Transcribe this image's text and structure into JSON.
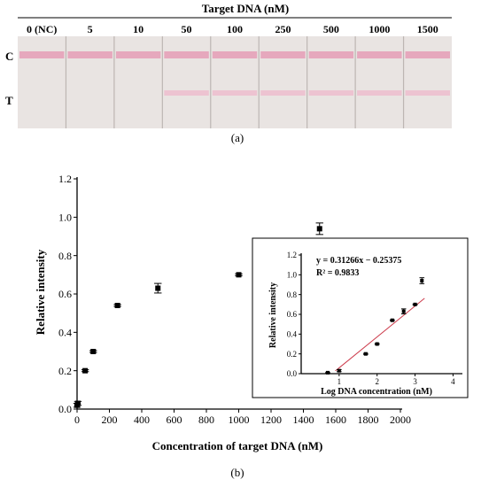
{
  "strips": {
    "header": "Target DNA (nM)",
    "concentrations": [
      "0 (NC)",
      "5",
      "10",
      "50",
      "100",
      "250",
      "500",
      "1000",
      "1500"
    ],
    "test_line_visible": [
      false,
      false,
      false,
      true,
      true,
      true,
      true,
      true,
      true
    ],
    "row_labels": {
      "control": "C",
      "test": "T"
    },
    "panel_label": "(a)",
    "colors": {
      "strip": "#e9e4e2",
      "control_line": "#e6a8bd",
      "test_line": "#edc3d1",
      "divider": "#bdb6b3"
    }
  },
  "panel_label_b": "(b)",
  "chart_data": [
    {
      "type": "scatter",
      "title": "",
      "xlabel": "Concentration of target DNA (nM)",
      "ylabel": "Relative intensity",
      "xlim": [
        0,
        2000
      ],
      "ylim": [
        0,
        1.2
      ],
      "xticks": [
        0,
        200,
        400,
        600,
        800,
        1000,
        1200,
        1400,
        1600,
        1800,
        2000
      ],
      "yticks": [
        0.0,
        0.2,
        0.4,
        0.6,
        0.8,
        1.0,
        1.2
      ],
      "tick_labels_x": [
        "0",
        "200",
        "400",
        "600",
        "800",
        "1000",
        "1200",
        "1400",
        "1600",
        "1800",
        "2000"
      ],
      "tick_labels_y": [
        "0.0",
        "0.2",
        "0.4",
        "0.6",
        "0.8",
        "1.0",
        "1.2"
      ],
      "points": [
        {
          "x": 0,
          "y": 0.02,
          "err": 0.01
        },
        {
          "x": 5,
          "y": 0.03,
          "err": 0.01
        },
        {
          "x": 50,
          "y": 0.2,
          "err": 0.005
        },
        {
          "x": 100,
          "y": 0.3,
          "err": 0.005
        },
        {
          "x": 250,
          "y": 0.54,
          "err": 0.005
        },
        {
          "x": 500,
          "y": 0.63,
          "err": 0.025
        },
        {
          "x": 1000,
          "y": 0.7,
          "err": 0.005
        },
        {
          "x": 1500,
          "y": 0.94,
          "err": 0.03
        }
      ],
      "grid": false,
      "marker_color": "#000000"
    },
    {
      "type": "scatter",
      "title": "",
      "xlabel": "Log DNA concentration (nM)",
      "ylabel": "Relative intensity",
      "xlim": [
        0,
        4.2
      ],
      "ylim": [
        0,
        1.2
      ],
      "xticks": [
        1,
        2,
        3,
        4
      ],
      "yticks": [
        0.0,
        0.2,
        0.4,
        0.6,
        0.8,
        1.0,
        1.2
      ],
      "tick_labels_x": [
        "1",
        "2",
        "3",
        "4"
      ],
      "tick_labels_y": [
        "0.0",
        "0.2",
        "0.4",
        "0.6",
        "0.8",
        "1.0",
        "1.2"
      ],
      "points": [
        {
          "x": 0.7,
          "y": 0.01,
          "err": 0.005
        },
        {
          "x": 1.0,
          "y": 0.03,
          "err": 0.01
        },
        {
          "x": 1.7,
          "y": 0.2,
          "err": 0.005
        },
        {
          "x": 2.0,
          "y": 0.3,
          "err": 0.005
        },
        {
          "x": 2.4,
          "y": 0.54,
          "err": 0.005
        },
        {
          "x": 2.7,
          "y": 0.63,
          "err": 0.025
        },
        {
          "x": 3.0,
          "y": 0.7,
          "err": 0.005
        },
        {
          "x": 3.18,
          "y": 0.94,
          "err": 0.03
        }
      ],
      "fit": {
        "slope": 0.31266,
        "intercept": -0.25375,
        "x_range": [
          0.9,
          3.25
        ],
        "color": "#cc3a4a"
      },
      "annotations": [
        "y = 0.31266x − 0.25375",
        "R² = 0.9833"
      ],
      "grid": false
    }
  ]
}
